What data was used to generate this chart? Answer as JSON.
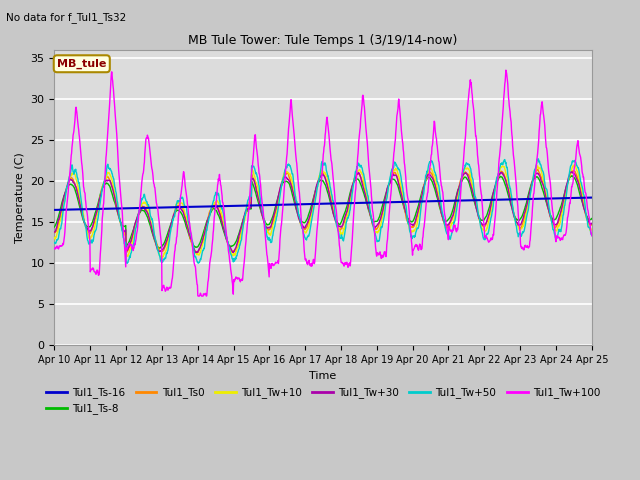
{
  "title": "MB Tule Tower: Tule Temps 1 (3/19/14-now)",
  "subtitle": "No data for f_Tul1_Ts32",
  "ylabel": "Temperature (C)",
  "xlabel": "Time",
  "ylim": [
    0,
    36
  ],
  "yticks": [
    0,
    5,
    10,
    15,
    20,
    25,
    30,
    35
  ],
  "fig_bg": "#c8c8c8",
  "plot_bg": "#dcdcdc",
  "mb_tule_label": "MB_tule",
  "legend_entries": [
    {
      "label": "Tul1_Ts-16",
      "color": "#0000cc"
    },
    {
      "label": "Tul1_Ts-8",
      "color": "#00bb00"
    },
    {
      "label": "Tul1_Ts0",
      "color": "#ff8800"
    },
    {
      "label": "Tul1_Tw+10",
      "color": "#eeee00"
    },
    {
      "label": "Tul1_Tw+30",
      "color": "#aa00aa"
    },
    {
      "label": "Tul1_Tw+50",
      "color": "#00cccc"
    },
    {
      "label": "Tul1_Tw+100",
      "color": "#ff00ff"
    }
  ],
  "x_tick_labels": [
    "Apr 10",
    "Apr 11",
    "Apr 12",
    "Apr 13",
    "Apr 14",
    "Apr 15",
    "Apr 16",
    "Apr 17",
    "Apr 18",
    "Apr 19",
    "Apr 20",
    "Apr 21",
    "Apr 22",
    "Apr 23",
    "Apr 24",
    "Apr 25"
  ],
  "n_days": 15,
  "pts_per_day": 96
}
